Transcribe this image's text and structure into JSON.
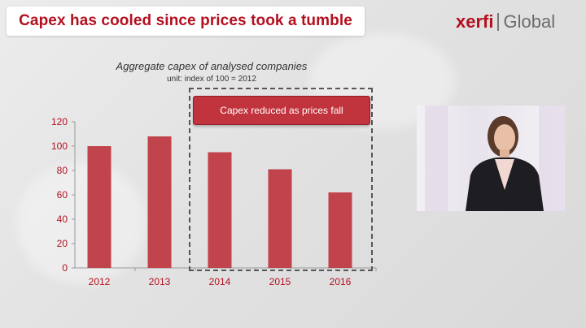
{
  "header": {
    "title": "Capex has cooled since prices took a tumble",
    "logo_brand": "xerfi",
    "logo_suffix": "Global"
  },
  "annotation": {
    "callout": "Capex reduced as prices fall"
  },
  "colors": {
    "accent": "#b3101f",
    "bar": "#c1434c"
  },
  "chart_data": {
    "type": "bar",
    "title": "Aggregate capex of analysed companies",
    "subtitle": "unit: index of 100 = 2012",
    "categories": [
      "2012",
      "2013",
      "2014",
      "2015",
      "2016"
    ],
    "values": [
      100,
      108,
      95,
      81,
      62
    ],
    "ylim": [
      0,
      120
    ],
    "yticks": [
      0,
      20,
      40,
      60,
      80,
      100,
      120
    ],
    "xlabel": "",
    "ylabel": "",
    "grid": false,
    "legend": "none"
  }
}
